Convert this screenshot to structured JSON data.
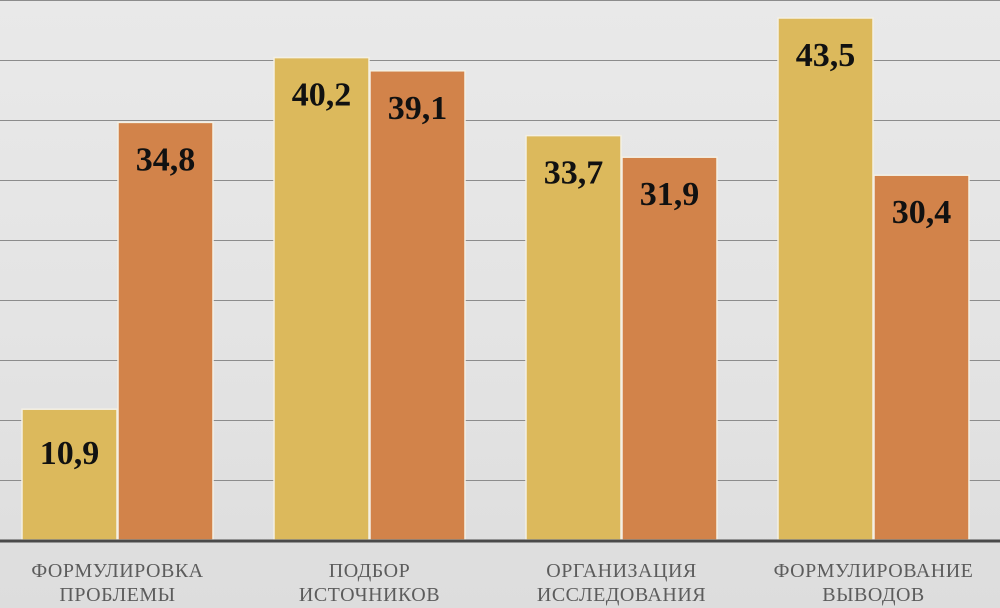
{
  "chart_data": {
    "type": "bar",
    "categories": [
      [
        "ФОРМУЛИРОВКА",
        "ПРОБЛЕМЫ"
      ],
      [
        "ПОДБОР",
        "ИСТОЧНИКОВ"
      ],
      [
        "ОРГАНИЗАЦИЯ",
        "ИССЛЕДОВАНИЯ"
      ],
      [
        "ФОРМУЛИРОВАНИЕ",
        "ВЫВОДОВ"
      ]
    ],
    "series": [
      {
        "values": [
          10.9,
          40.2,
          33.7,
          43.5
        ],
        "labels": [
          "10,9",
          "40,2",
          "33,7",
          "43,5"
        ],
        "color": "#dcb95c"
      },
      {
        "values": [
          34.8,
          39.1,
          31.9,
          30.4
        ],
        "labels": [
          "34,8",
          "39,1",
          "31,9",
          "30,4"
        ],
        "color": "#d2834a"
      }
    ],
    "ylim": [
      0,
      45
    ],
    "grid": true,
    "legend": "none"
  },
  "colors": {
    "grid": "#8c8c8c",
    "axis": "#4a4a4a",
    "bar_edge": "#f4f0e4"
  }
}
